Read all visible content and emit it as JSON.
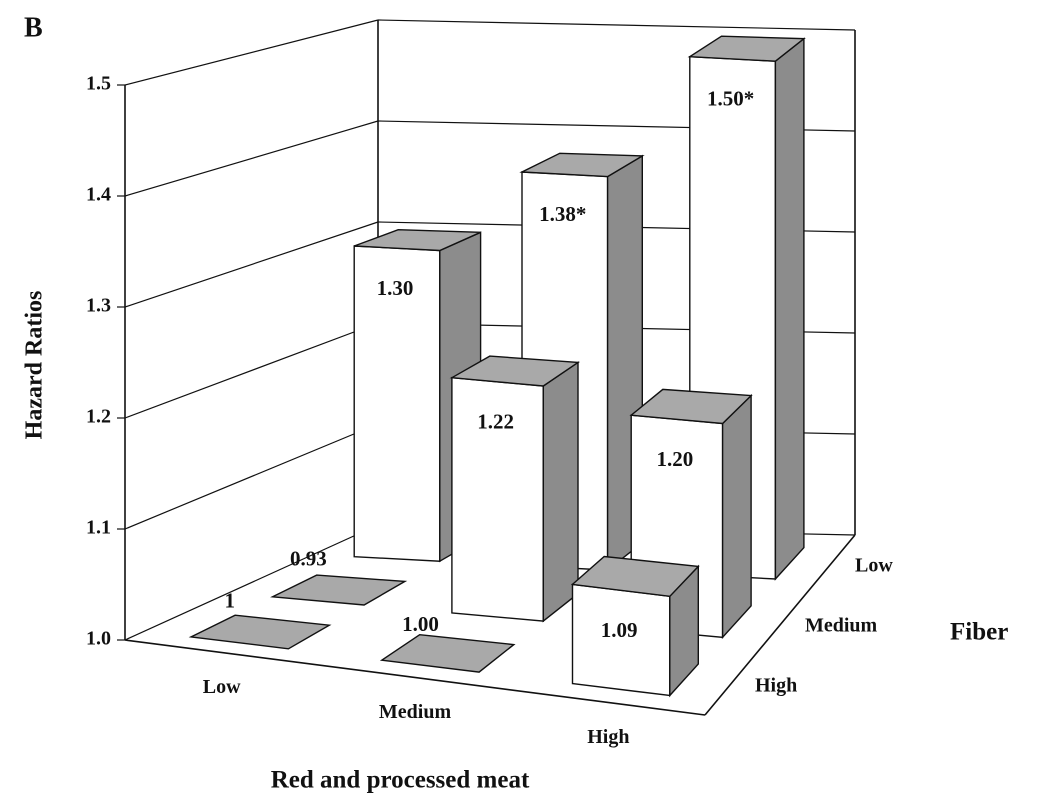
{
  "chart_data": {
    "type": "bar3d",
    "panel_label": "B",
    "y_label": "Hazard Ratios",
    "x_label": "Red and processed meat",
    "depth_label": "Fiber",
    "categories": [
      "Low",
      "Medium",
      "High"
    ],
    "series": [
      {
        "name": "Low",
        "values": [
          1.3,
          1.38,
          1.5
        ],
        "value_labels": [
          "1.30",
          "1.38*",
          "1.50*"
        ]
      },
      {
        "name": "Medium",
        "values": [
          0.93,
          1.22,
          1.2
        ],
        "value_labels": [
          "0.93",
          "1.22",
          "1.20"
        ]
      },
      {
        "name": "High",
        "values": [
          1,
          1.0,
          1.09
        ],
        "value_labels": [
          "1",
          "1.00",
          "1.09"
        ]
      }
    ],
    "ylim": [
      1.0,
      1.5
    ],
    "yticks": [
      {
        "value": 1.0,
        "label": "1.0"
      },
      1.1,
      1.2,
      1.3,
      1.4,
      1.5
    ],
    "grid": true
  }
}
